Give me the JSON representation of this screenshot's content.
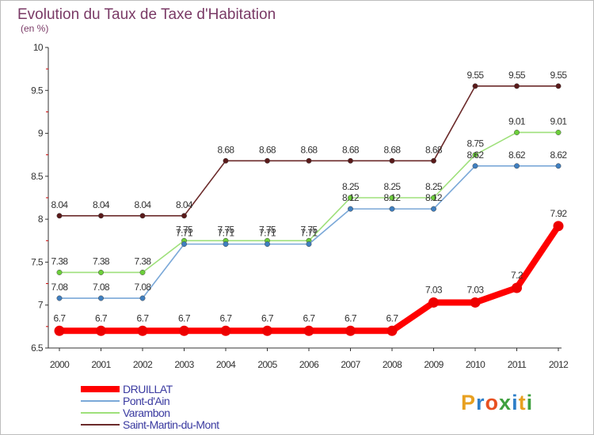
{
  "header": {
    "title": "Evolution du Taux de Taxe d'Habitation",
    "subtitle": "(en %)"
  },
  "logo": {
    "text": "Proxiti",
    "colors": [
      "#e8a020",
      "#2f7fc8",
      "#e85020",
      "#3fa03f",
      "#2f7fc8",
      "#e8a020",
      "#3fa03f"
    ]
  },
  "chart_data": {
    "type": "line",
    "x": [
      "2000",
      "2001",
      "2002",
      "2003",
      "2004",
      "2005",
      "2006",
      "2007",
      "2008",
      "2009",
      "2010",
      "2011",
      "2012"
    ],
    "ylim": [
      6.5,
      10
    ],
    "yticks": [
      "6.5",
      "7",
      "7.5",
      "8",
      "8.5",
      "9",
      "9.5",
      "10"
    ],
    "series": [
      {
        "name": "Saint-Martin-du-Mont",
        "color": "#6b2a2a",
        "marker": "#5a1a1a",
        "thick": false,
        "values": [
          8.04,
          8.04,
          8.04,
          8.04,
          8.68,
          8.68,
          8.68,
          8.68,
          8.68,
          8.68,
          9.55,
          9.55,
          9.55
        ],
        "labels": [
          "8.04",
          "8.04",
          "8.04",
          "8.04",
          "8.68",
          "8.68",
          "8.68",
          "8.68",
          "8.68",
          "8.68",
          "9.55",
          "9.55",
          "9.55"
        ]
      },
      {
        "name": "Varambon",
        "color": "#9ee07a",
        "marker": "#6ccf3a",
        "thick": false,
        "values": [
          7.38,
          7.38,
          7.38,
          7.75,
          7.75,
          7.75,
          7.75,
          8.25,
          8.25,
          8.25,
          8.75,
          9.01,
          9.01
        ],
        "labels": [
          "7.38",
          "7.38",
          "7.38",
          "7.75",
          "7.75",
          "7.75",
          "7.75",
          "8.25",
          "8.25",
          "8.25",
          "8.75",
          "9.01",
          "9.01"
        ]
      },
      {
        "name": "Pont-d'Ain",
        "color": "#7aa8d8",
        "marker": "#3f7fc0",
        "thick": false,
        "values": [
          7.08,
          7.08,
          7.08,
          7.71,
          7.71,
          7.71,
          7.71,
          8.12,
          8.12,
          8.12,
          8.62,
          8.62,
          8.62
        ],
        "labels": [
          "7.08",
          "7.08",
          "7.08",
          "7.71",
          "7.71",
          "7.71",
          "7.71",
          "8.12",
          "8.12",
          "8.12",
          "8.62",
          "8.62",
          "8.62"
        ]
      },
      {
        "name": "DRUILLAT",
        "color": "#ff0000",
        "marker": "#ee0000",
        "thick": true,
        "values": [
          6.7,
          6.7,
          6.7,
          6.7,
          6.7,
          6.7,
          6.7,
          6.7,
          6.7,
          7.03,
          7.03,
          7.2,
          7.92
        ],
        "labels": [
          "6.7",
          "6.7",
          "6.7",
          "6.7",
          "6.7",
          "6.7",
          "6.7",
          "6.7",
          "6.7",
          "7.03",
          "7.03",
          "7.2",
          "7.92"
        ]
      }
    ],
    "legend": [
      {
        "name": "DRUILLAT",
        "color": "#ff0000",
        "thick": true
      },
      {
        "name": "Pont-d'Ain",
        "color": "#7aa8d8",
        "thick": false
      },
      {
        "name": "Varambon",
        "color": "#9ee07a",
        "thick": false
      },
      {
        "name": "Saint-Martin-du-Mont",
        "color": "#6b2a2a",
        "thick": false
      }
    ]
  }
}
